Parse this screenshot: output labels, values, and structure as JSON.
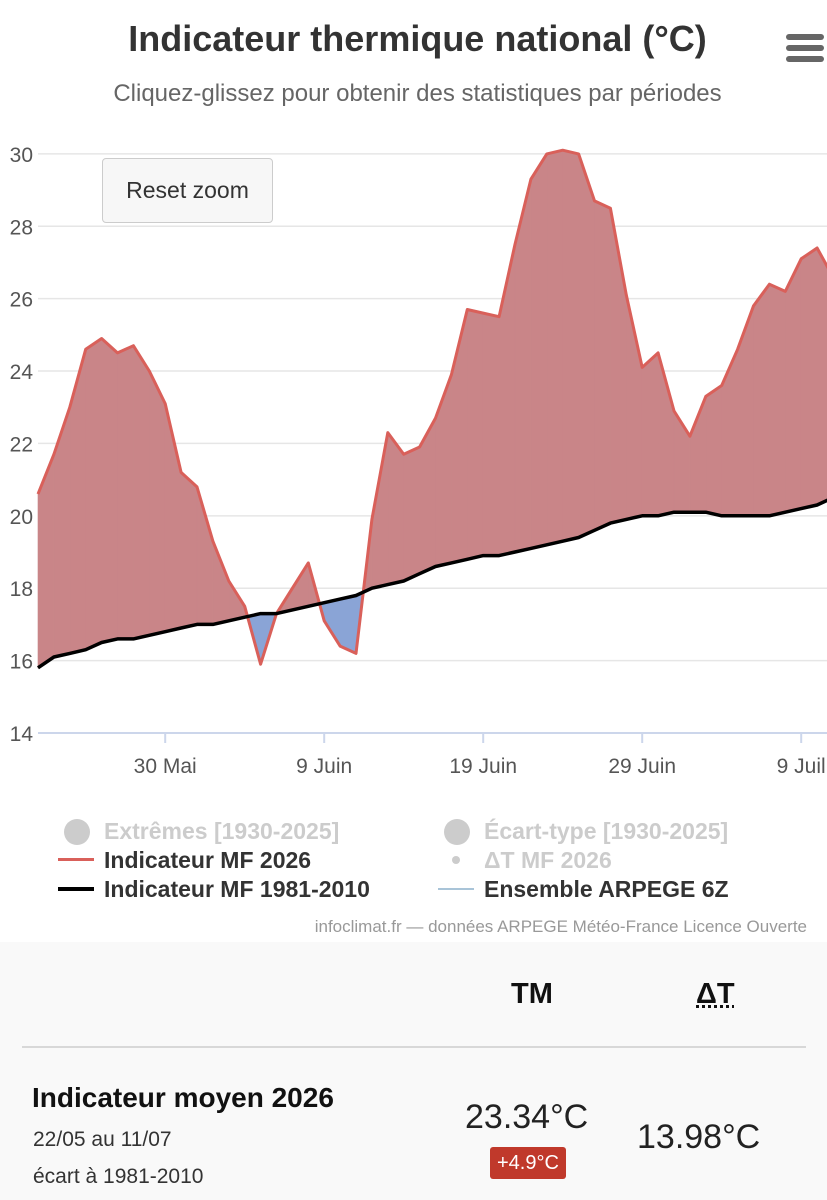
{
  "chart_data": {
    "type": "area",
    "title": "Indicateur thermique national (°C)",
    "subtitle": "Cliquez-glissez pour obtenir des statistiques par périodes",
    "reset_label": "Reset zoom",
    "credits": "infoclimat.fr — données ARPEGE Météo-France Licence Ouverte",
    "x_start": "2026-05-22",
    "x_tick_labels": [
      {
        "label": "30 Mai",
        "date": "2026-05-30"
      },
      {
        "label": "9 Juin",
        "date": "2026-06-09"
      },
      {
        "label": "19 Juin",
        "date": "2026-06-19"
      },
      {
        "label": "29 Juin",
        "date": "2026-06-29"
      },
      {
        "label": "9 Juil",
        "date": "2026-07-09"
      }
    ],
    "y_ticks": [
      14,
      16,
      18,
      20,
      22,
      24,
      26,
      28,
      30
    ],
    "ylim": [
      14,
      30.3
    ],
    "grid": true,
    "legend_position": "bottom",
    "legend": [
      {
        "label": "Extrêmes [1930-2025]",
        "symbol": "dot",
        "enabled": false
      },
      {
        "label": "Écart-type [1930-2025]",
        "symbol": "dot",
        "enabled": false
      },
      {
        "label": "Indicateur MF 2026",
        "symbol": "line",
        "color": "#d9605a",
        "enabled": true
      },
      {
        "label": "ΔT MF 2026",
        "symbol": "small-dot",
        "enabled": false
      },
      {
        "label": "Indicateur MF 1981-2010",
        "symbol": "line",
        "color": "#000000",
        "enabled": true
      },
      {
        "label": "Ensemble ARPEGE 6Z",
        "symbol": "line",
        "color": "#a9c4d8",
        "enabled": true
      }
    ],
    "colors": {
      "above": "#c98588",
      "below": "#8aa4d6",
      "line_2026": "#d9605a",
      "line_normal": "#000000"
    },
    "series": [
      {
        "name": "Indicateur MF 2026",
        "points": [
          [
            "2026-05-22",
            20.6
          ],
          [
            "2026-05-23",
            21.7
          ],
          [
            "2026-05-24",
            23.0
          ],
          [
            "2026-05-25",
            24.6
          ],
          [
            "2026-05-26",
            24.9
          ],
          [
            "2026-05-27",
            24.5
          ],
          [
            "2026-05-28",
            24.7
          ],
          [
            "2026-05-29",
            24.0
          ],
          [
            "2026-05-30",
            23.1
          ],
          [
            "2026-05-31",
            21.2
          ],
          [
            "2026-06-01",
            20.8
          ],
          [
            "2026-06-02",
            19.3
          ],
          [
            "2026-06-03",
            18.2
          ],
          [
            "2026-06-04",
            17.5
          ],
          [
            "2026-06-05",
            15.9
          ],
          [
            "2026-06-06",
            17.3
          ],
          [
            "2026-06-07",
            18.0
          ],
          [
            "2026-06-08",
            18.7
          ],
          [
            "2026-06-09",
            17.1
          ],
          [
            "2026-06-10",
            16.4
          ],
          [
            "2026-06-11",
            16.2
          ],
          [
            "2026-06-12",
            19.9
          ],
          [
            "2026-06-13",
            22.3
          ],
          [
            "2026-06-14",
            21.7
          ],
          [
            "2026-06-15",
            21.9
          ],
          [
            "2026-06-16",
            22.7
          ],
          [
            "2026-06-17",
            23.9
          ],
          [
            "2026-06-18",
            25.7
          ],
          [
            "2026-06-19",
            25.6
          ],
          [
            "2026-06-20",
            25.5
          ],
          [
            "2026-06-21",
            27.5
          ],
          [
            "2026-06-22",
            29.3
          ],
          [
            "2026-06-23",
            30.0
          ],
          [
            "2026-06-24",
            30.1
          ],
          [
            "2026-06-25",
            30.0
          ],
          [
            "2026-06-26",
            28.7
          ],
          [
            "2026-06-27",
            28.5
          ],
          [
            "2026-06-28",
            26.1
          ],
          [
            "2026-06-29",
            24.1
          ],
          [
            "2026-06-30",
            24.5
          ],
          [
            "2026-07-01",
            22.9
          ],
          [
            "2026-07-02",
            22.2
          ],
          [
            "2026-07-03",
            23.3
          ],
          [
            "2026-07-04",
            23.6
          ],
          [
            "2026-07-05",
            24.6
          ],
          [
            "2026-07-06",
            25.8
          ],
          [
            "2026-07-07",
            26.4
          ],
          [
            "2026-07-08",
            26.2
          ],
          [
            "2026-07-09",
            27.1
          ],
          [
            "2026-07-10",
            27.4
          ],
          [
            "2026-07-11",
            26.6
          ]
        ]
      },
      {
        "name": "Indicateur MF 1981-2010",
        "points": [
          [
            "2026-05-22",
            15.8
          ],
          [
            "2026-05-23",
            16.1
          ],
          [
            "2026-05-24",
            16.2
          ],
          [
            "2026-05-25",
            16.3
          ],
          [
            "2026-05-26",
            16.5
          ],
          [
            "2026-05-27",
            16.6
          ],
          [
            "2026-05-28",
            16.6
          ],
          [
            "2026-05-29",
            16.7
          ],
          [
            "2026-05-30",
            16.8
          ],
          [
            "2026-05-31",
            16.9
          ],
          [
            "2026-06-01",
            17.0
          ],
          [
            "2026-06-02",
            17.0
          ],
          [
            "2026-06-03",
            17.1
          ],
          [
            "2026-06-04",
            17.2
          ],
          [
            "2026-06-05",
            17.3
          ],
          [
            "2026-06-06",
            17.3
          ],
          [
            "2026-06-07",
            17.4
          ],
          [
            "2026-06-08",
            17.5
          ],
          [
            "2026-06-09",
            17.6
          ],
          [
            "2026-06-10",
            17.7
          ],
          [
            "2026-06-11",
            17.8
          ],
          [
            "2026-06-12",
            18.0
          ],
          [
            "2026-06-13",
            18.1
          ],
          [
            "2026-06-14",
            18.2
          ],
          [
            "2026-06-15",
            18.4
          ],
          [
            "2026-06-16",
            18.6
          ],
          [
            "2026-06-17",
            18.7
          ],
          [
            "2026-06-18",
            18.8
          ],
          [
            "2026-06-19",
            18.9
          ],
          [
            "2026-06-20",
            18.9
          ],
          [
            "2026-06-21",
            19.0
          ],
          [
            "2026-06-22",
            19.1
          ],
          [
            "2026-06-23",
            19.2
          ],
          [
            "2026-06-24",
            19.3
          ],
          [
            "2026-06-25",
            19.4
          ],
          [
            "2026-06-26",
            19.6
          ],
          [
            "2026-06-27",
            19.8
          ],
          [
            "2026-06-28",
            19.9
          ],
          [
            "2026-06-29",
            20.0
          ],
          [
            "2026-06-30",
            20.0
          ],
          [
            "2026-07-01",
            20.1
          ],
          [
            "2026-07-02",
            20.1
          ],
          [
            "2026-07-03",
            20.1
          ],
          [
            "2026-07-04",
            20.0
          ],
          [
            "2026-07-05",
            20.0
          ],
          [
            "2026-07-06",
            20.0
          ],
          [
            "2026-07-07",
            20.0
          ],
          [
            "2026-07-08",
            20.1
          ],
          [
            "2026-07-09",
            20.2
          ],
          [
            "2026-07-10",
            20.3
          ],
          [
            "2026-07-11",
            20.5
          ]
        ]
      }
    ]
  },
  "stats": {
    "col_tm": "TM",
    "col_dt": "ΔT",
    "row_title": "Indicateur moyen 2026",
    "row_period": "22/05 au 11/07",
    "row_note": "écart à 1981-2010",
    "tm_value": "23.34°C",
    "tm_delta": "+4.9°C",
    "dt_value": "13.98°C"
  }
}
